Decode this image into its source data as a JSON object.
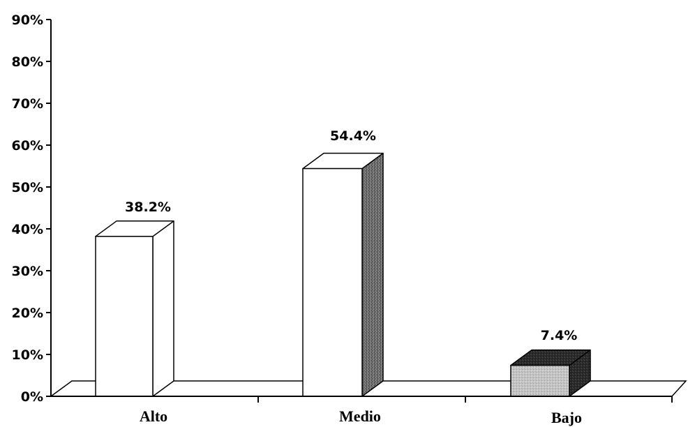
{
  "chart_data": {
    "type": "bar",
    "categories": [
      "Alto",
      "Medio",
      "Bajo"
    ],
    "values": [
      38.2,
      54.4,
      7.4
    ],
    "value_labels": [
      "38.2%",
      "54.4%",
      "7.4%"
    ],
    "y_ticks": [
      "0%",
      "10%",
      "20%",
      "30%",
      "40%",
      "50%",
      "60%",
      "70%",
      "80%",
      "90%"
    ],
    "ylim": [
      0,
      90
    ],
    "grid": false,
    "legend": "none",
    "style": "3d",
    "colors": {
      "front": "#ffffff",
      "side_dark": "#555555",
      "top_dark": "#2a2a2a",
      "front_gray": "#bdbdbd",
      "outline": "#000000"
    }
  }
}
